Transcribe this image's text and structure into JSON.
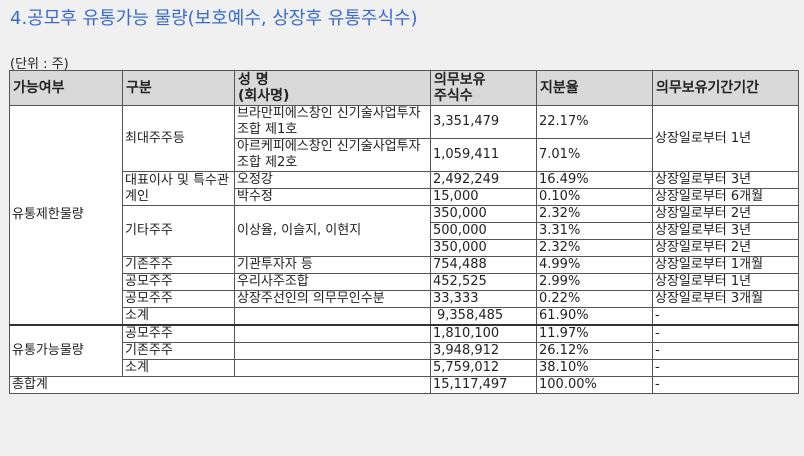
{
  "title": "4.공모후 유통가능 물량(보호예수, 상장후 유통주식수)",
  "unit": "(단위 : 주)",
  "headers": {
    "availability": "가능여부",
    "category": "구분",
    "name": "성 명\n(회사명)",
    "shares": "의무보유\n주식수",
    "ratio": "지분율",
    "period": "의무보유기간기간"
  },
  "groups": {
    "restricted": "유통제한물량",
    "tradable": "유통가능물량",
    "total": "총합계"
  },
  "categories": {
    "largest": "최대주주등",
    "ceo": "대표이사 및 특수관계인",
    "other": "기타주주",
    "existing": "기존주주",
    "public1": "공모주주",
    "public2": "공모주주",
    "subtotal": "소계",
    "t_public": "공모주주",
    "t_existing": "기존주주",
    "t_subtotal": "소계"
  },
  "rows": {
    "r1": {
      "name": "브라만피에스창인 신기술사업투자조합 제1호",
      "shares": "3,351,479",
      "ratio": "22.17%"
    },
    "r2": {
      "name": "아르케피에스창인 신기술사업투자조합 제2호",
      "shares": "1,059,411",
      "ratio": "7.01%"
    },
    "largest_period": "상장일로부터 1년",
    "r3": {
      "name": "오정강",
      "shares": "2,492,249",
      "ratio": "16.49%",
      "period": "상장일로부터 3년"
    },
    "r4": {
      "name": "박수정",
      "shares": "15,000",
      "ratio": "0.10%",
      "period": "상장일로부터 6개월"
    },
    "other_name": "이상율, 이슬지, 이현지",
    "r5": {
      "shares": "350,000",
      "ratio": "2.32%",
      "period": "상장일로부터 2년"
    },
    "r6": {
      "shares": "500,000",
      "ratio": "3.31%",
      "period": "상장일로부터 3년"
    },
    "r7": {
      "shares": "350,000",
      "ratio": "2.32%",
      "period": "상장일로부터 2년"
    },
    "r8": {
      "name": "기관투자자 등",
      "shares": "754,488",
      "ratio": "4.99%",
      "period": "상장일로부터 1개월"
    },
    "r9": {
      "name": "우리사주조합",
      "shares": "452,525",
      "ratio": "2.99%",
      "period": "상장일로부터 1년"
    },
    "r10": {
      "name": "상장주선인의 의무무인수분",
      "shares": "33,333",
      "ratio": "0.22%",
      "period": "상장일로부터 3개월"
    },
    "r11": {
      "shares": "9,358,485",
      "ratio": "61.90%",
      "period": "-"
    },
    "r12": {
      "shares": "1,810,100",
      "ratio": "11.97%",
      "period": "-"
    },
    "r13": {
      "shares": "3,948,912",
      "ratio": "26.12%",
      "period": "-"
    },
    "r14": {
      "shares": "5,759,012",
      "ratio": "38.10%",
      "period": "-"
    },
    "r15": {
      "shares": "15,117,497",
      "ratio": "100.00%",
      "period": "-"
    }
  }
}
